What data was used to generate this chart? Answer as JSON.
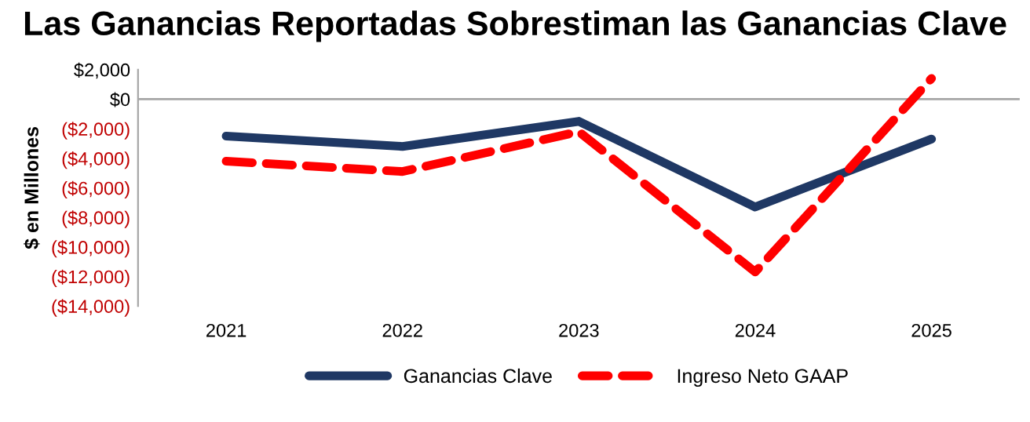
{
  "chart_data": {
    "type": "line",
    "title": "Las Ganancias Reportadas Sobrestiman las Ganancias Clave",
    "ylabel": "$ en Millones",
    "categories": [
      "2021",
      "2022",
      "2023",
      "2024",
      "2025"
    ],
    "series": [
      {
        "name": "Ganancias Clave",
        "color": "#1f3864",
        "values": [
          -2500,
          -3200,
          -1500,
          -7300,
          -2700
        ],
        "line_style": "solid"
      },
      {
        "name": "Ingreso Neto GAAP",
        "color": "#ff0000",
        "values": [
          -4200,
          -4900,
          -2200,
          -11700,
          1400
        ],
        "line_style": "dashed"
      }
    ],
    "ylim": [
      -14000,
      2000
    ],
    "yticks": [
      {
        "value": 2000,
        "label": "$2,000"
      },
      {
        "value": 0,
        "label": "$0"
      },
      {
        "value": -2000,
        "label": "($2,000)"
      },
      {
        "value": -4000,
        "label": "($4,000)"
      },
      {
        "value": -6000,
        "label": "($6,000)"
      },
      {
        "value": -8000,
        "label": "($8,000)"
      },
      {
        "value": -10000,
        "label": "($10,000)"
      },
      {
        "value": -12000,
        "label": "($12,000)"
      },
      {
        "value": -14000,
        "label": "($14,000)"
      }
    ],
    "ref_lines": [
      {
        "axis": "y",
        "value": 0,
        "color": "#a6a6a6"
      }
    ],
    "grid": false,
    "legend": "bottom",
    "marker": "none"
  }
}
